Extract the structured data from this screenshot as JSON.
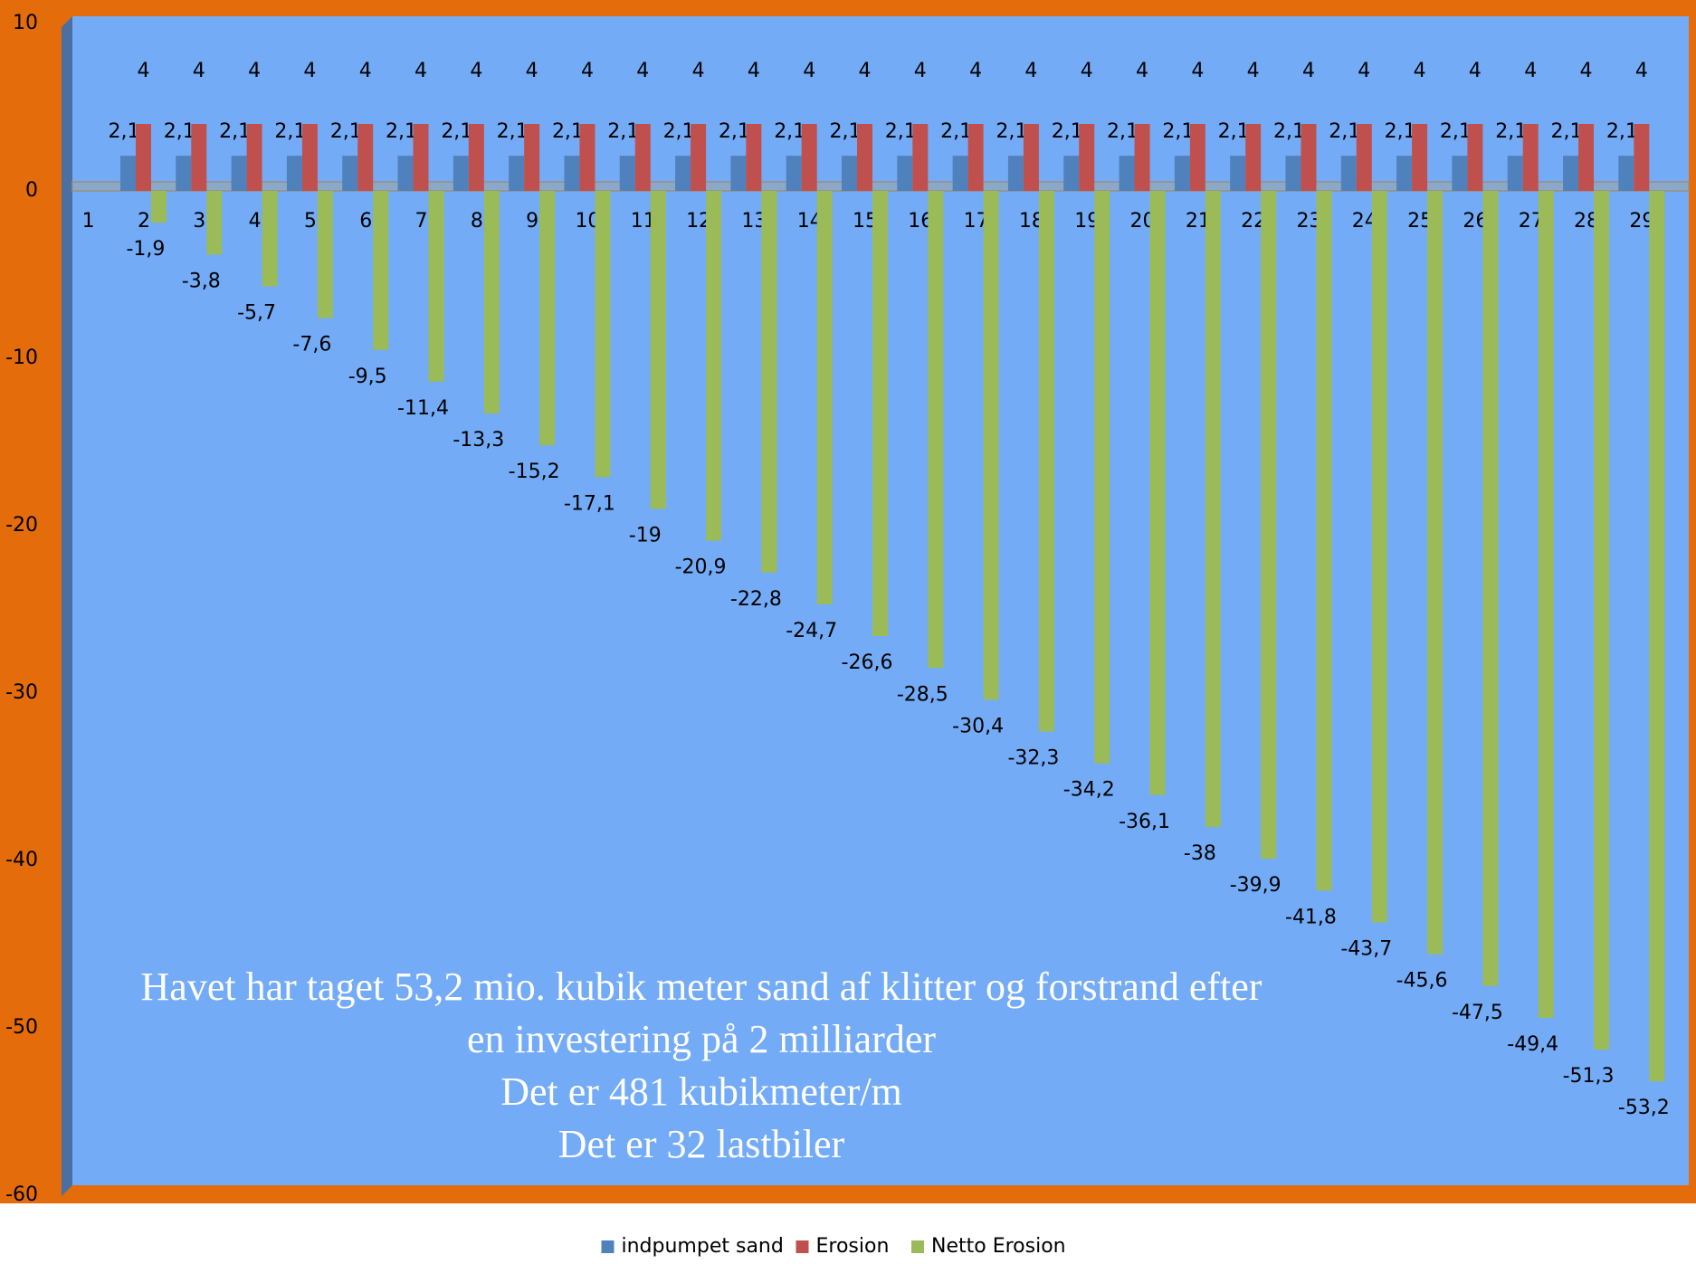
{
  "chart_data": {
    "type": "bar",
    "categories": [
      "1",
      "2",
      "3",
      "4",
      "5",
      "6",
      "7",
      "8",
      "9",
      "10",
      "11",
      "12",
      "13",
      "14",
      "15",
      "16",
      "17",
      "18",
      "19",
      "20",
      "21",
      "22",
      "23",
      "24",
      "25",
      "26",
      "27",
      "28",
      "29"
    ],
    "series": [
      {
        "name": "indpumpet sand",
        "color": "#4f81bd",
        "values": [
          null,
          2.1,
          2.1,
          2.1,
          2.1,
          2.1,
          2.1,
          2.1,
          2.1,
          2.1,
          2.1,
          2.1,
          2.1,
          2.1,
          2.1,
          2.1,
          2.1,
          2.1,
          2.1,
          2.1,
          2.1,
          2.1,
          2.1,
          2.1,
          2.1,
          2.1,
          2.1,
          2.1,
          2.1
        ],
        "value_labels": [
          null,
          "2,1",
          "2,1",
          "2,1",
          "2,1",
          "2,1",
          "2,1",
          "2,1",
          "2,1",
          "2,1",
          "2,1",
          "2,1",
          "2,1",
          "2,1",
          "2,1",
          "2,1",
          "2,1",
          "2,1",
          "2,1",
          "2,1",
          "2,1",
          "2,1",
          "2,1",
          "2,1",
          "2,1",
          "2,1",
          "2,1",
          "2,1",
          "2,1"
        ]
      },
      {
        "name": "Erosion",
        "color": "#c0504d",
        "values": [
          null,
          4,
          4,
          4,
          4,
          4,
          4,
          4,
          4,
          4,
          4,
          4,
          4,
          4,
          4,
          4,
          4,
          4,
          4,
          4,
          4,
          4,
          4,
          4,
          4,
          4,
          4,
          4,
          4
        ]
      },
      {
        "name": "Netto Erosion",
        "color": "#9bbb59",
        "values": [
          null,
          -1.9,
          -3.8,
          -5.7,
          -7.6,
          -9.5,
          -11.4,
          -13.3,
          -15.2,
          -17.1,
          -19,
          -20.9,
          -22.8,
          -24.7,
          -26.6,
          -28.5,
          -30.4,
          -32.3,
          -34.2,
          -36.1,
          -38,
          -39.9,
          -41.8,
          -43.7,
          -45.6,
          -47.5,
          -49.4,
          -51.3,
          -53.2
        ],
        "value_labels": [
          null,
          "-1,9",
          "-3,8",
          "-5,7",
          "-7,6",
          "-9,5",
          "-11,4",
          "-13,3",
          "-15,2",
          "-17,1",
          "-19",
          "-20,9",
          "-22,8",
          "-24,7",
          "-26,6",
          "-28,5",
          "-30,4",
          "-32,3",
          "-34,2",
          "-36,1",
          "-38",
          "-39,9",
          "-41,8",
          "-43,7",
          "-45,6",
          "-47,5",
          "-49,4",
          "-51,3",
          "-53,2"
        ]
      }
    ],
    "ylim": [
      -60,
      10
    ],
    "yticks": [
      10,
      0,
      -10,
      -20,
      -30,
      -40,
      -50,
      -60
    ],
    "annotation": [
      "Havet har taget 53,2 mio. kubik meter  sand af klitter og forstrand efter",
      "en investering på 2 milliarder",
      "Det er 481 kubikmeter/m",
      "Det er 32 lastbiler"
    ],
    "legend": "bottom"
  }
}
